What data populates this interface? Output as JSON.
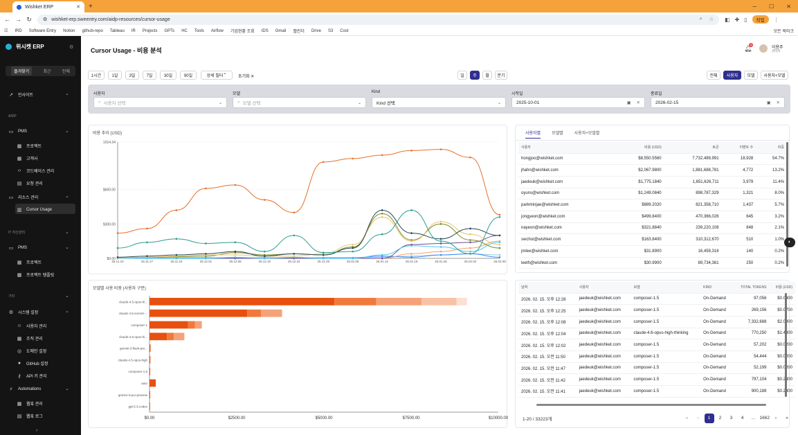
{
  "browser": {
    "tab_title": "Wishket ERP",
    "url": "wishket-erp.sweentry.com/aidp-resources/cursor-usage",
    "profile_label": "작업",
    "bookmarks": [
      "IRD",
      "Software Entry",
      "Notion",
      "github-repo",
      "Tableau",
      "IR",
      "Projects",
      "GPTs",
      "HC",
      "Tools",
      "Airflow",
      "기업현황 조회",
      "IDS",
      "Gmail",
      "캘린더",
      "Drive",
      "S3",
      "Cost"
    ],
    "bookmarks_right": "모든 북마크"
  },
  "sidebar": {
    "brand": "위시켓 ERP",
    "tabs": [
      "즐겨찾기",
      "최근",
      "전체"
    ],
    "items": [
      {
        "label": "인사이트",
        "icon": "trend-icon",
        "top": 80,
        "left": 12,
        "chev": true
      },
      {
        "label": "AIDP",
        "section": true,
        "top": 113,
        "left": 12
      },
      {
        "label": "PMS",
        "icon": "folder-icon",
        "top": 134,
        "left": 12,
        "chev": true
      },
      {
        "label": "프로젝트",
        "icon": "grid-icon",
        "top": 154,
        "left": 24
      },
      {
        "label": "고객사",
        "icon": "grid-icon",
        "top": 172,
        "left": 24
      },
      {
        "label": "코드베이스 관리",
        "icon": "code-icon",
        "top": 190,
        "left": 24
      },
      {
        "label": "요청 관리",
        "icon": "doc-icon",
        "top": 208,
        "left": 24
      },
      {
        "label": "리소스 관리",
        "icon": "folder-icon",
        "top": 228,
        "left": 12,
        "chev": true
      },
      {
        "label": "Cursor Usage",
        "icon": "chart-icon",
        "top": 247,
        "left": 24
      },
      {
        "label": "IT 자산관리",
        "section": true,
        "top": 280,
        "left": 12,
        "chev": true
      },
      {
        "label": "PMS",
        "icon": "folder-icon",
        "top": 302,
        "left": 12,
        "chev": true
      },
      {
        "label": "프로젝트",
        "icon": "grid-icon",
        "top": 322,
        "left": 24
      },
      {
        "label": "프로젝트 템플릿",
        "icon": "grid-icon",
        "top": 340,
        "left": 24
      },
      {
        "label": "기타",
        "section": true,
        "top": 372,
        "left": 12,
        "chev": true
      },
      {
        "label": "시스템 설정",
        "icon": "gear-icon",
        "top": 394,
        "left": 12,
        "chev": true
      },
      {
        "label": "사용자 관리",
        "icon": "user-icon",
        "top": 414,
        "left": 24
      },
      {
        "label": "조직 관리",
        "icon": "grid-icon",
        "top": 432,
        "left": 24
      },
      {
        "label": "도메인 설정",
        "icon": "globe-icon",
        "top": 450,
        "left": 24
      },
      {
        "label": "GitHub 설정",
        "icon": "github-icon",
        "top": 468,
        "left": 24
      },
      {
        "label": "API 키 관리",
        "icon": "key-icon",
        "top": 486,
        "left": 24
      },
      {
        "label": "Automations",
        "icon": "bolt-icon",
        "top": 506,
        "left": 12,
        "chev": true
      },
      {
        "label": "웹훅 관리",
        "icon": "grid-icon",
        "top": 526,
        "left": 24
      },
      {
        "label": "웹훅 로그",
        "icon": "doc-icon",
        "top": 544,
        "left": 24
      }
    ]
  },
  "header": {
    "title": "Cursor Usage - 비용 분석",
    "notif_count": "3",
    "user_name": "이용주",
    "user_role": "관리자"
  },
  "toolbar": {
    "ranges": [
      "1시간",
      "1일",
      "3일",
      "7일",
      "30일",
      "90일"
    ],
    "detail_filter": "상세 필터",
    "reset": "초기화",
    "granularity": [
      "일",
      "주",
      "월",
      "분기"
    ],
    "granularity_active": "주",
    "group_by": [
      "전체",
      "사용자",
      "모델",
      "사용자+모델"
    ],
    "group_by_active": "사용자"
  },
  "filters": {
    "user": {
      "label": "사용자",
      "placeholder": "사용자 선택"
    },
    "model": {
      "label": "모델",
      "placeholder": "모델 선택"
    },
    "kind": {
      "label": "Kind",
      "value": "Kind 선택"
    },
    "start": {
      "label": "시작일",
      "value": "2025-10-01"
    },
    "end": {
      "label": "종료일",
      "value": "2026-02-15"
    }
  },
  "cost_chart": {
    "title": "비용 추이 (USD)",
    "chart_data": {
      "type": "line",
      "x": [
        "25.11.10",
        "25.11.17",
        "25.11.24",
        "25.12.01",
        "25.12.08",
        "25.12.15",
        "25.12.22",
        "25.12.29",
        "26.01.05",
        "26.01.12",
        "26.01.19",
        "26.01.26",
        "26.02.02",
        "26.02.09"
      ],
      "y_ticks": [
        "$0.00",
        "$300.00",
        "$600.00",
        "1014.34"
      ],
      "ylim": [
        0,
        1014.34
      ],
      "series": [
        {
          "color": "#e8702a",
          "values": [
            220,
            260,
            420,
            610,
            640,
            510,
            400,
            840,
            870,
            900,
            940,
            950,
            880,
            380
          ]
        },
        {
          "color": "#2a9d8f",
          "values": [
            90,
            140,
            170,
            130,
            140,
            60,
            200,
            50,
            60,
            210,
            420,
            150,
            40,
            360
          ]
        },
        {
          "color": "#264653",
          "values": [
            10,
            20,
            30,
            40,
            60,
            20,
            40,
            30,
            90,
            420,
            220,
            170,
            260,
            200
          ]
        },
        {
          "color": "#e9c46a",
          "values": [
            5,
            10,
            20,
            30,
            30,
            20,
            20,
            40,
            120,
            360,
            150,
            320,
            210,
            120
          ]
        },
        {
          "color": "#7b8c2a",
          "values": [
            5,
            10,
            15,
            20,
            50,
            30,
            40,
            30,
            100,
            390,
            160,
            300,
            160,
            90
          ]
        },
        {
          "color": "#4cc9f0",
          "values": [
            0,
            0,
            0,
            0,
            10,
            0,
            10,
            0,
            0,
            30,
            110,
            100,
            60,
            140
          ]
        },
        {
          "color": "#6a4c93",
          "values": [
            0,
            0,
            0,
            0,
            0,
            0,
            0,
            0,
            0,
            0,
            120,
            130,
            140,
            200
          ]
        },
        {
          "color": "#f4a261",
          "values": [
            0,
            0,
            0,
            0,
            0,
            0,
            0,
            0,
            0,
            0,
            40,
            60,
            90,
            150
          ]
        },
        {
          "color": "#3a86ff",
          "values": [
            5,
            5,
            5,
            5,
            5,
            5,
            5,
            5,
            5,
            20,
            10,
            30,
            40,
            10
          ]
        },
        {
          "color": "#8ecae6",
          "values": [
            0,
            0,
            0,
            0,
            0,
            0,
            0,
            0,
            0,
            10,
            20,
            30,
            40,
            30
          ]
        }
      ]
    }
  },
  "model_chart": {
    "title": "모델별 사용 비중 (사용자 구분)",
    "chart_data": {
      "type": "bar",
      "categories": [
        "claude-4.5-opus-hi...",
        "claude-4.5-sonnet-...",
        "composer-1",
        "claude-4.6-opus-hi...",
        "gemini-3-flash-pre...",
        "claude-4.5-opus-high",
        "composer-1.5",
        "auto",
        "gemini-3-pro-preview",
        "gpt-5.3-codex"
      ],
      "x_ticks": [
        "$0.00",
        "$2500.00",
        "$5000.00",
        "$7500.00",
        "$10000.00"
      ],
      "xlim": [
        0,
        10000
      ],
      "segments": [
        [
          5300,
          1200,
          1300,
          1000,
          300
        ],
        [
          2800,
          400,
          600
        ],
        [
          1100,
          200,
          200
        ],
        [
          500,
          200,
          300
        ],
        [
          30
        ],
        [
          25
        ],
        [
          20
        ],
        [
          180
        ],
        [
          20
        ],
        [
          15
        ]
      ]
    }
  },
  "user_table": {
    "tabs": [
      "사용자별",
      "모델별",
      "사용자+모델별"
    ],
    "active_tab": "사용자별",
    "headers": [
      "사용자",
      "비용 (USD)",
      "토큰",
      "이벤트 수",
      "비중"
    ],
    "rows": [
      [
        "hongjoo@wishket.com",
        "$8,550.5560",
        "7,732,489,991",
        "18,928",
        "54.7%"
      ],
      [
        "jhahn@wishket.com",
        "$2,067.9800",
        "1,881,688,781",
        "4,772",
        "13.2%"
      ],
      [
        "jaedeuk@wishket.com",
        "$1,775.1840",
        "1,651,626,711",
        "3,979",
        "11.4%"
      ],
      [
        "oyuns@wishket.com",
        "$1,249.0840",
        "898,787,329",
        "1,321",
        "8.0%"
      ],
      [
        "parkminjae@wishket.com",
        "$889.2020",
        "821,358,710",
        "1,437",
        "5.7%"
      ],
      [
        "jongyeon@wishket.com",
        "$499.8400",
        "470,366,026",
        "645",
        "3.2%"
      ],
      [
        "nayeon@wishket.com",
        "$321.8840",
        "239,220,108",
        "848",
        "2.1%"
      ],
      [
        "swchoi@wishket.com",
        "$163.8400",
        "310,312,670",
        "510",
        "1.0%"
      ],
      [
        "jmlee@wishket.com",
        "$31.8900",
        "16,459,316",
        "140",
        "0.2%"
      ],
      [
        "leeth@wishket.com",
        "$30.9900",
        "89,734,361",
        "250",
        "0.2%"
      ]
    ]
  },
  "event_table": {
    "headers": [
      "날짜",
      "사용자",
      "모델",
      "KIND",
      "TOTAL TOKENS",
      "비용 (USD)"
    ],
    "rows": [
      [
        "2026. 02. 15. 오후 12:28",
        "jaedeuk@wishket.com",
        "composer-1.5",
        "On-Demand",
        "97,056",
        "$0.0300"
      ],
      [
        "2026. 02. 15. 오후 12:25",
        "jaedeuk@wishket.com",
        "composer-1.5",
        "On-Demand",
        "269,156",
        "$0.0700"
      ],
      [
        "2026. 02. 15. 오후 12:08",
        "jaedeuk@wishket.com",
        "composer-1.5",
        "On-Demand",
        "7,332,688",
        "$2.0000"
      ],
      [
        "2026. 02. 15. 오후 12:04",
        "jaedeuk@wishket.com",
        "claude-4.6-opus-high-thinking",
        "On-Demand",
        "770,250",
        "$1.4800"
      ],
      [
        "2026. 02. 15. 오후 12:02",
        "jaedeuk@wishket.com",
        "composer-1.5",
        "On-Demand",
        "57,202",
        "$0.0200"
      ],
      [
        "2026. 02. 15. 오전 11:50",
        "jaedeuk@wishket.com",
        "composer-1.5",
        "On-Demand",
        "54,444",
        "$0.0200"
      ],
      [
        "2026. 02. 15. 오전 11:47",
        "jaedeuk@wishket.com",
        "composer-1.5",
        "On-Demand",
        "52,199",
        "$0.0200"
      ],
      [
        "2026. 02. 15. 오전 11:42",
        "jaedeuk@wishket.com",
        "composer-1.5",
        "On-Demand",
        "797,104",
        "$0.2300"
      ],
      [
        "2026. 02. 15. 오전 11:41",
        "jaedeuk@wishket.com",
        "composer-1.5",
        "On-Demand",
        "900,188",
        "$0.2300"
      ]
    ],
    "range_text": "1-20 / 33223개",
    "pages": [
      "1",
      "2",
      "3",
      "4",
      "...",
      "1662"
    ],
    "active_page": "1"
  }
}
